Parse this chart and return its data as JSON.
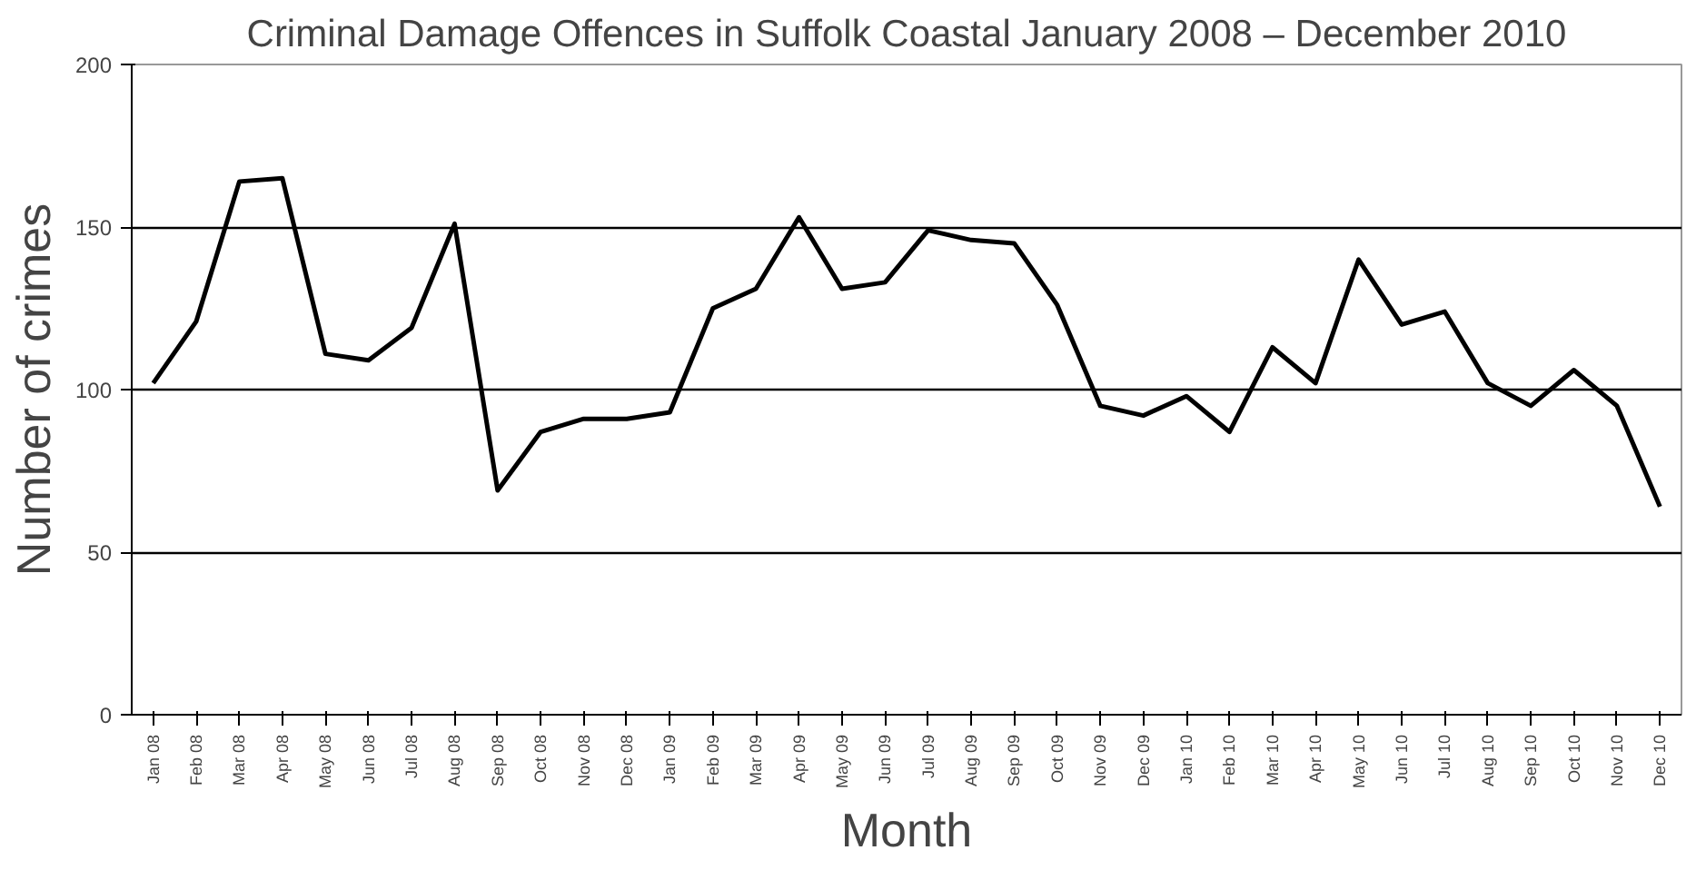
{
  "chart_data": {
    "type": "line",
    "title": "Criminal Damage Offences in Suffolk Coastal January 2008 – December 2010",
    "xlabel": "Month",
    "ylabel": "Number of crimes",
    "categories": [
      "Jan 08",
      "Feb 08",
      "Mar 08",
      "Apr 08",
      "May 08",
      "Jun 08",
      "Jul 08",
      "Aug 08",
      "Sep 08",
      "Oct 08",
      "Nov 08",
      "Dec 08",
      "Jan 09",
      "Feb 09",
      "Mar 09",
      "Apr 09",
      "May 09",
      "Jun 09",
      "Jul 09",
      "Aug 09",
      "Sep 09",
      "Oct 09",
      "Nov 09",
      "Dec 09",
      "Jan 10",
      "Feb 10",
      "Mar 10",
      "Apr 10",
      "May 10",
      "Jun 10",
      "Jul 10",
      "Aug 10",
      "Sep 10",
      "Oct 10",
      "Nov 10",
      "Dec 10"
    ],
    "series": [
      {
        "color": "#000000",
        "values": [
          102,
          121,
          164,
          165,
          111,
          109,
          119,
          151,
          69,
          87,
          91,
          91,
          93,
          125,
          131,
          153,
          131,
          133,
          149,
          146,
          145,
          126,
          95,
          92,
          98,
          87,
          113,
          102,
          140,
          120,
          124,
          102,
          95,
          106,
          95,
          64
        ]
      }
    ],
    "ylim": [
      0,
      200
    ],
    "yticks": [
      0,
      50,
      100,
      150,
      200
    ],
    "grid": "y",
    "marker": "none",
    "line_style": "solid"
  }
}
